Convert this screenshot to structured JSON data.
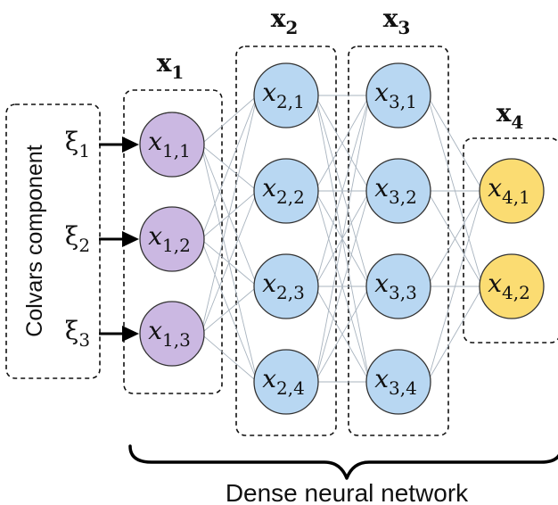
{
  "input_box_label": "Colvars component",
  "inputs": [
    {
      "base": "ξ",
      "sub": "1"
    },
    {
      "base": "ξ",
      "sub": "2"
    },
    {
      "base": "ξ",
      "sub": "3"
    }
  ],
  "layers": [
    {
      "label_base": "x",
      "label_sub": "1",
      "color": "#cbb8e2",
      "nodes": [
        {
          "base": "x",
          "sub": "1,1"
        },
        {
          "base": "x",
          "sub": "1,2"
        },
        {
          "base": "x",
          "sub": "1,3"
        }
      ]
    },
    {
      "label_base": "x",
      "label_sub": "2",
      "color": "#b8d7f2",
      "nodes": [
        {
          "base": "x",
          "sub": "2,1"
        },
        {
          "base": "x",
          "sub": "2,2"
        },
        {
          "base": "x",
          "sub": "2,3"
        },
        {
          "base": "x",
          "sub": "2,4"
        }
      ]
    },
    {
      "label_base": "x",
      "label_sub": "3",
      "color": "#b8d7f2",
      "nodes": [
        {
          "base": "x",
          "sub": "3,1"
        },
        {
          "base": "x",
          "sub": "3,2"
        },
        {
          "base": "x",
          "sub": "3,3"
        },
        {
          "base": "x",
          "sub": "3,4"
        }
      ]
    },
    {
      "label_base": "x",
      "label_sub": "4",
      "color": "#fbdc72",
      "nodes": [
        {
          "base": "x",
          "sub": "4,1"
        },
        {
          "base": "x",
          "sub": "4,2"
        }
      ]
    }
  ],
  "network_label": "Dense neural network"
}
